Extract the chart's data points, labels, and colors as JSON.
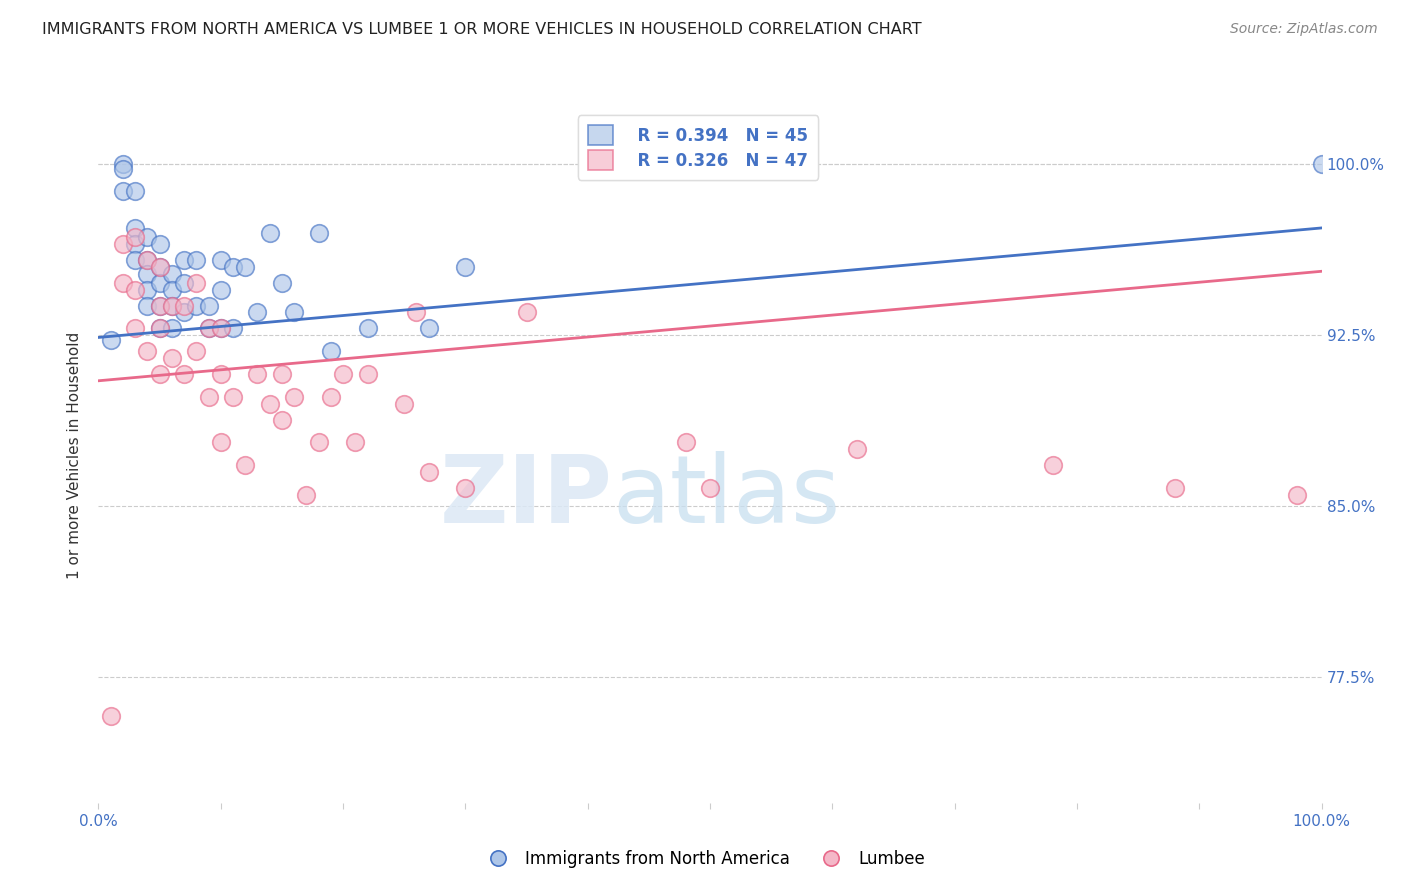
{
  "title": "IMMIGRANTS FROM NORTH AMERICA VS LUMBEE 1 OR MORE VEHICLES IN HOUSEHOLD CORRELATION CHART",
  "source": "Source: ZipAtlas.com",
  "ylabel": "1 or more Vehicles in Household",
  "xlim": [
    0.0,
    1.0
  ],
  "ylim": [
    0.72,
    1.025
  ],
  "yticks": [
    0.775,
    0.85,
    0.925,
    1.0
  ],
  "ytick_labels": [
    "77.5%",
    "85.0%",
    "92.5%",
    "100.0%"
  ],
  "legend_r_blue": "R = 0.394",
  "legend_n_blue": "N = 45",
  "legend_r_pink": "R = 0.326",
  "legend_n_pink": "N = 47",
  "blue_fill": "#aec6e8",
  "pink_fill": "#f4b8c8",
  "blue_edge": "#4472c4",
  "pink_edge": "#e8698a",
  "blue_line_color": "#4472c4",
  "pink_line_color": "#e8698a",
  "title_color": "#222222",
  "source_color": "#888888",
  "tick_color_right": "#4472c4",
  "watermark_zip": "ZIP",
  "watermark_atlas": "atlas",
  "blue_scatter_x": [
    0.01,
    0.02,
    0.02,
    0.02,
    0.03,
    0.03,
    0.03,
    0.03,
    0.04,
    0.04,
    0.04,
    0.04,
    0.04,
    0.05,
    0.05,
    0.05,
    0.05,
    0.05,
    0.06,
    0.06,
    0.06,
    0.06,
    0.07,
    0.07,
    0.07,
    0.08,
    0.08,
    0.09,
    0.09,
    0.1,
    0.1,
    0.1,
    0.11,
    0.11,
    0.12,
    0.13,
    0.14,
    0.15,
    0.16,
    0.18,
    0.19,
    0.22,
    0.27,
    0.3,
    1.0
  ],
  "blue_scatter_y": [
    0.923,
    1.0,
    0.998,
    0.988,
    0.988,
    0.972,
    0.965,
    0.958,
    0.968,
    0.958,
    0.952,
    0.945,
    0.938,
    0.965,
    0.955,
    0.948,
    0.938,
    0.928,
    0.952,
    0.945,
    0.938,
    0.928,
    0.958,
    0.948,
    0.935,
    0.958,
    0.938,
    0.938,
    0.928,
    0.958,
    0.945,
    0.928,
    0.955,
    0.928,
    0.955,
    0.935,
    0.97,
    0.948,
    0.935,
    0.97,
    0.918,
    0.928,
    0.928,
    0.955,
    1.0
  ],
  "pink_scatter_x": [
    0.01,
    0.02,
    0.02,
    0.03,
    0.03,
    0.03,
    0.04,
    0.04,
    0.05,
    0.05,
    0.05,
    0.05,
    0.06,
    0.06,
    0.07,
    0.07,
    0.08,
    0.08,
    0.09,
    0.09,
    0.1,
    0.1,
    0.1,
    0.11,
    0.12,
    0.13,
    0.14,
    0.15,
    0.15,
    0.16,
    0.17,
    0.18,
    0.19,
    0.2,
    0.21,
    0.22,
    0.25,
    0.26,
    0.27,
    0.3,
    0.35,
    0.48,
    0.5,
    0.62,
    0.78,
    0.88,
    0.98
  ],
  "pink_scatter_y": [
    0.758,
    0.965,
    0.948,
    0.968,
    0.945,
    0.928,
    0.958,
    0.918,
    0.955,
    0.938,
    0.928,
    0.908,
    0.938,
    0.915,
    0.938,
    0.908,
    0.948,
    0.918,
    0.928,
    0.898,
    0.928,
    0.908,
    0.878,
    0.898,
    0.868,
    0.908,
    0.895,
    0.908,
    0.888,
    0.898,
    0.855,
    0.878,
    0.898,
    0.908,
    0.878,
    0.908,
    0.895,
    0.935,
    0.865,
    0.858,
    0.935,
    0.878,
    0.858,
    0.875,
    0.868,
    0.858,
    0.855
  ],
  "blue_line_y_start": 0.924,
  "blue_line_y_end": 0.972,
  "pink_line_y_start": 0.905,
  "pink_line_y_end": 0.953
}
